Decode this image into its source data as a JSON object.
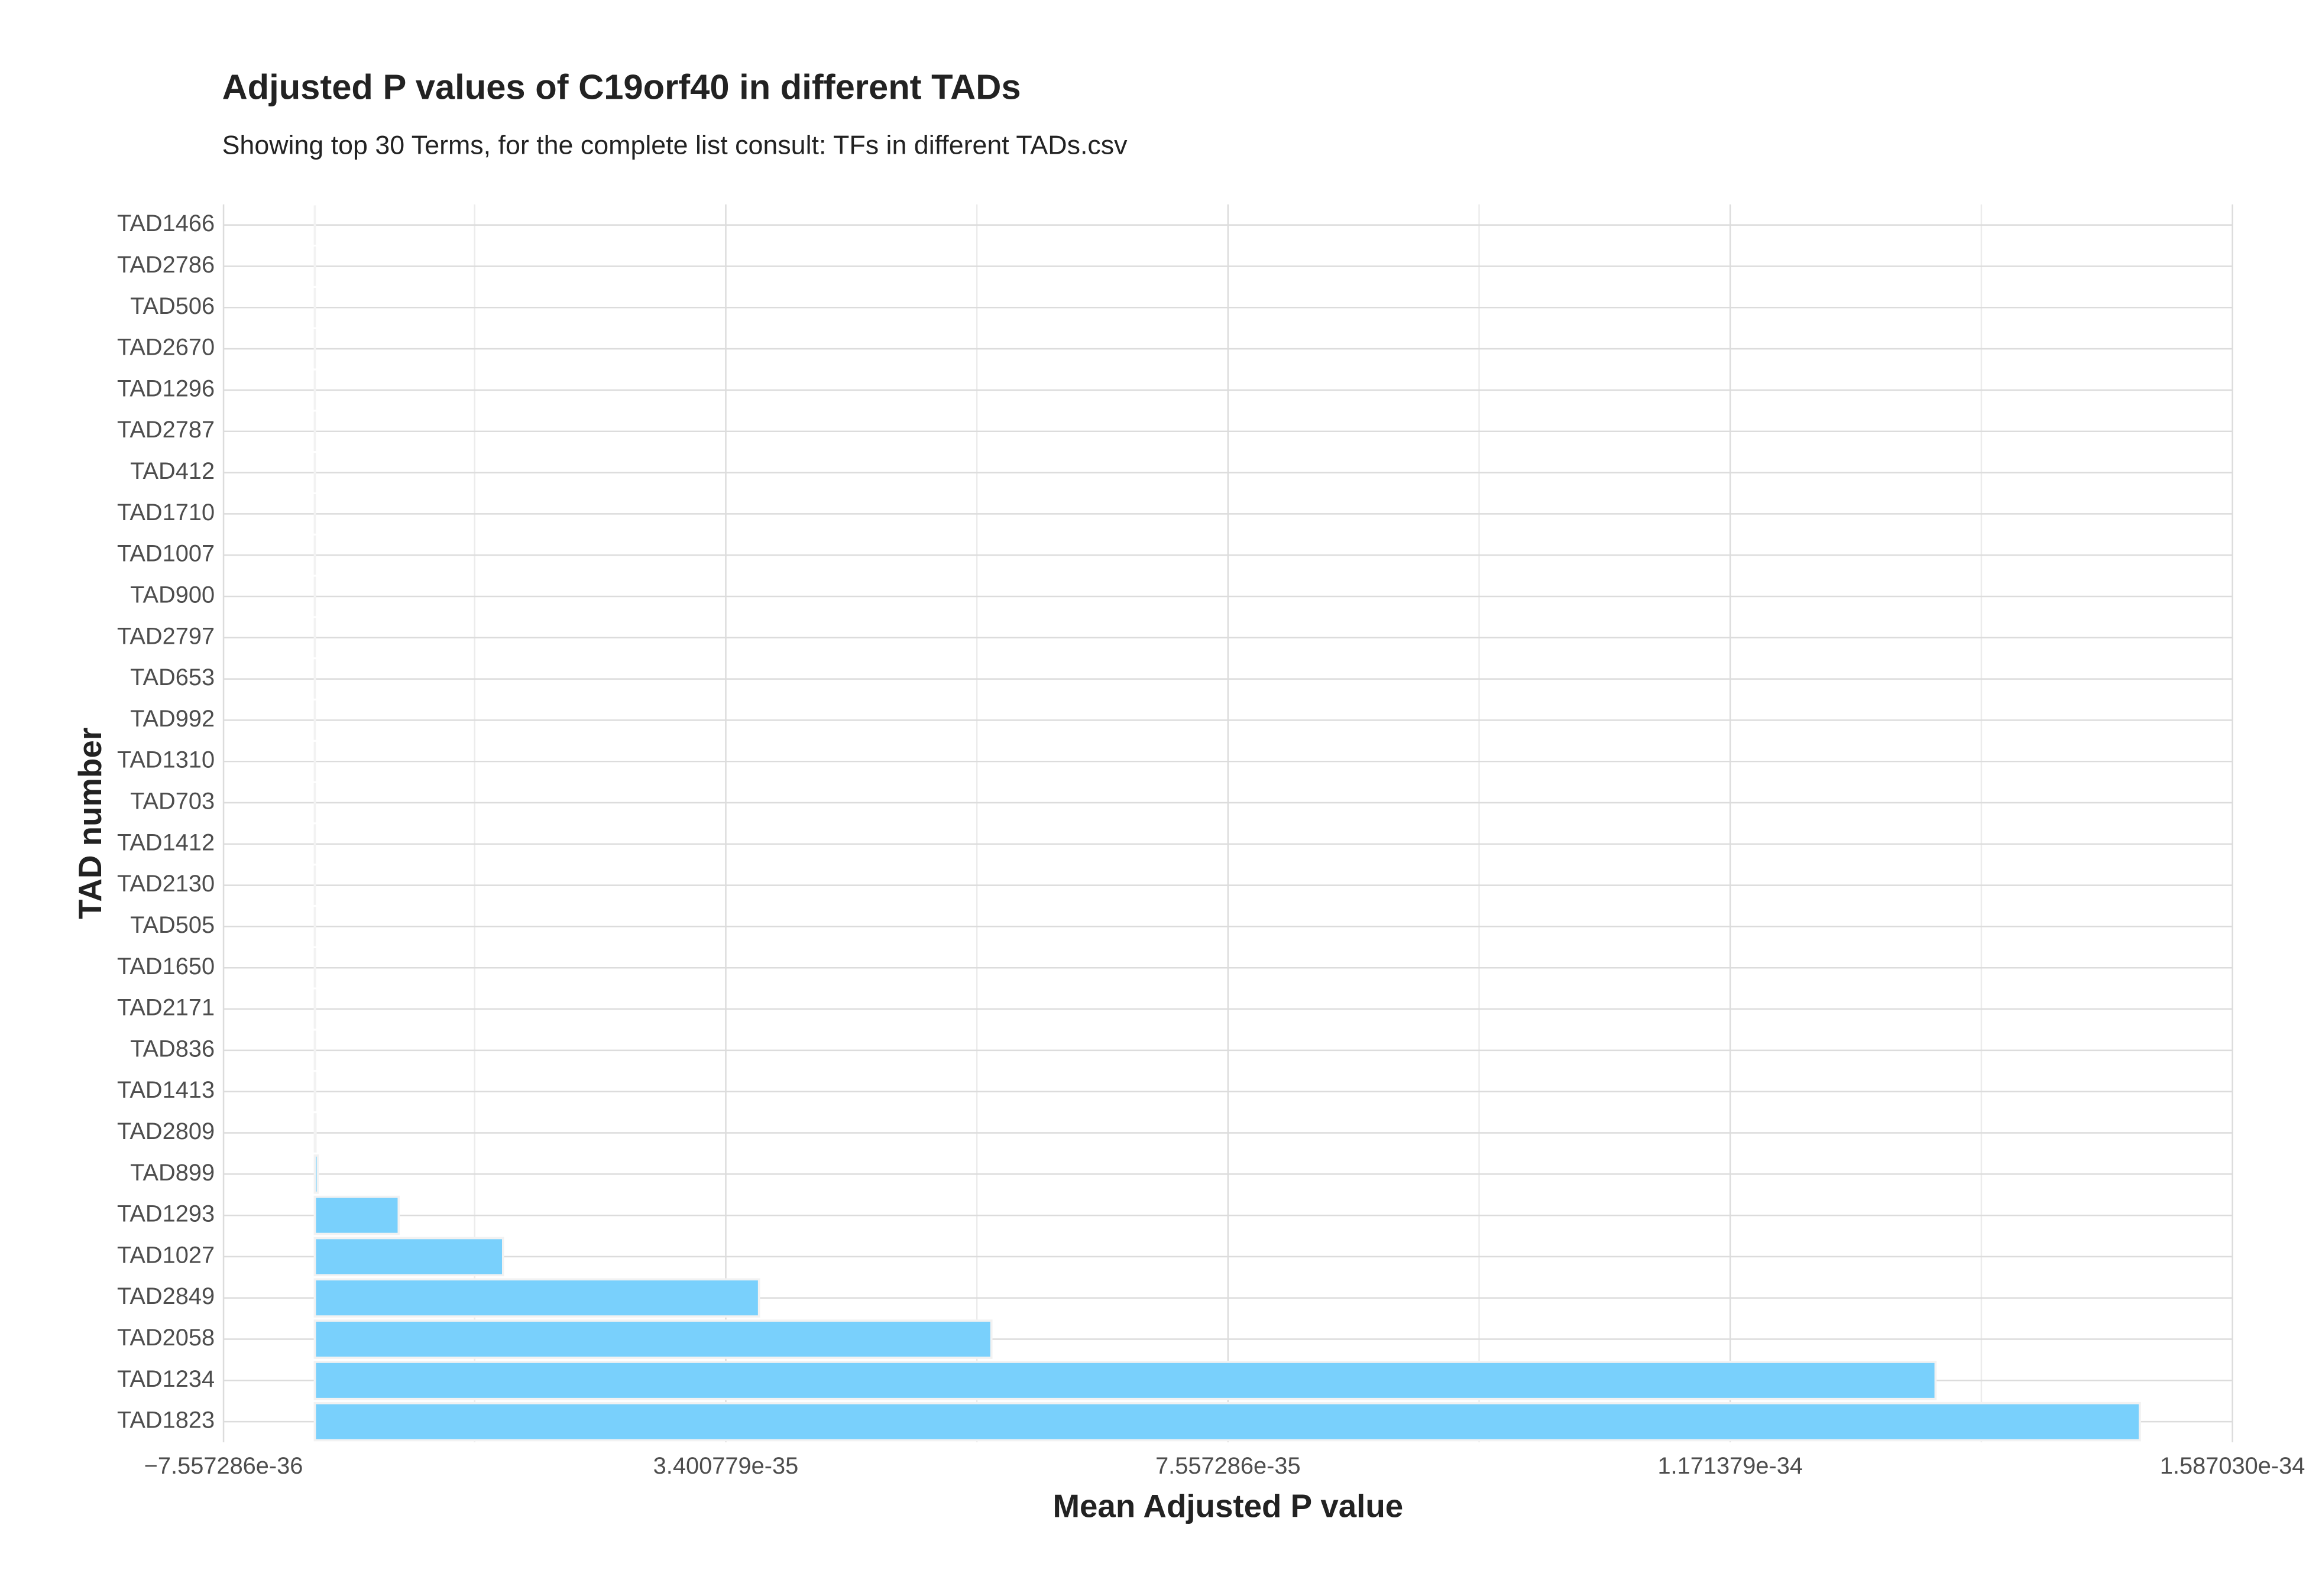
{
  "chart_data": {
    "type": "hbar",
    "title": "Adjusted P values of C19orf40 in different TADs",
    "subtitle": "Showing top 30 Terms, for the complete list consult: TFs in different TADs.csv",
    "x_label": "Mean Adjusted P value",
    "y_label": "TAD number",
    "categories": [
      "TAD1466",
      "TAD2786",
      "TAD506",
      "TAD2670",
      "TAD1296",
      "TAD2787",
      "TAD412",
      "TAD1710",
      "TAD1007",
      "TAD900",
      "TAD2797",
      "TAD653",
      "TAD992",
      "TAD1310",
      "TAD703",
      "TAD1412",
      "TAD2130",
      "TAD505",
      "TAD1650",
      "TAD2171",
      "TAD836",
      "TAD1413",
      "TAD2809",
      "TAD899",
      "TAD1293",
      "TAD1027",
      "TAD2849",
      "TAD2058",
      "TAD1234",
      "TAD1823"
    ],
    "values": [
      1e-42,
      2e-42,
      3e-42,
      5e-42,
      8e-42,
      1e-41,
      2e-41,
      3e-41,
      5e-41,
      8e-41,
      1e-40,
      2e-40,
      3e-40,
      5e-40,
      8e-40,
      1e-39,
      2e-39,
      3e-39,
      5e-39,
      8e-39,
      1.5e-38,
      3e-38,
      6e-38,
      2.4e-37,
      6.94e-36,
      1.558e-35,
      3.676e-35,
      5.599e-35,
      1.3413e-34,
      1.5104e-34
    ],
    "color": "#79d0fc",
    "xlim": [
      -7.557286e-36,
      1.58703e-34
    ],
    "xticks": [
      {
        "value": -7.557286e-36,
        "label": "−7.557286e-36"
      },
      {
        "value": 3.400779e-35,
        "label": "3.400779e-35"
      },
      {
        "value": 7.557286e-35,
        "label": "7.557286e-35"
      },
      {
        "value": 1.171379e-34,
        "label": "1.171379e-34"
      },
      {
        "value": 1.58703e-34,
        "label": "1.587030e-34"
      }
    ],
    "grid": true
  }
}
